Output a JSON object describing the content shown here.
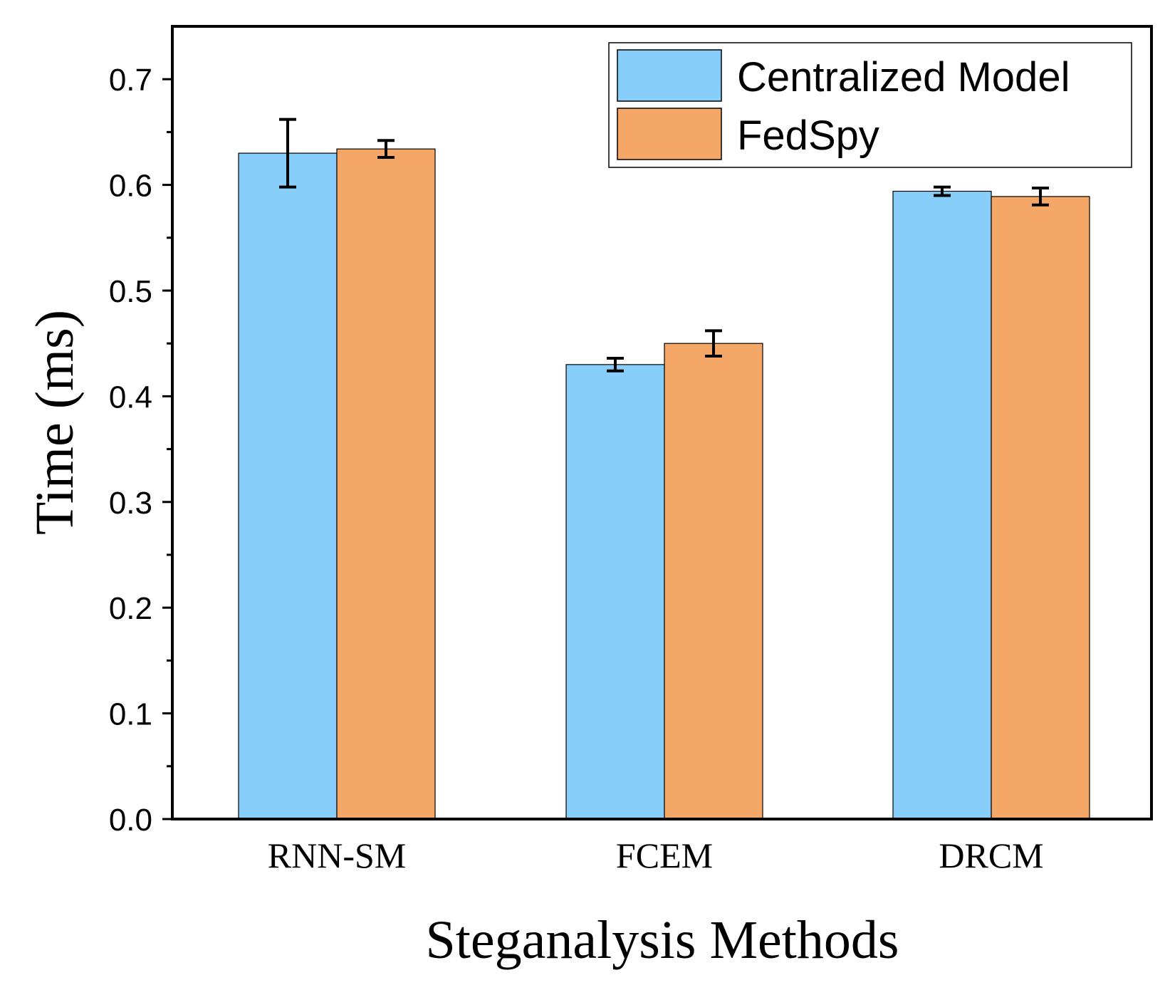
{
  "chart_data": {
    "type": "bar",
    "title": "",
    "xlabel": "Steganalysis Methods",
    "ylabel": "Time (ms)",
    "categories": [
      "RNN-SM",
      "FCEM",
      "DRCM"
    ],
    "ylim": [
      0,
      0.75
    ],
    "yticks": [
      "0.0",
      "0.1",
      "0.2",
      "0.3",
      "0.4",
      "0.5",
      "0.6",
      "0.7"
    ],
    "grid": false,
    "legend_position": "top-right",
    "series": [
      {
        "name": "Centralized Model",
        "color": "#87CEFA",
        "values": [
          0.63,
          0.43,
          0.594
        ],
        "errors": [
          0.032,
          0.006,
          0.004
        ]
      },
      {
        "name": "FedSpy",
        "color": "#F4A767",
        "values": [
          0.634,
          0.45,
          0.589
        ],
        "errors": [
          0.008,
          0.012,
          0.008
        ]
      }
    ]
  }
}
